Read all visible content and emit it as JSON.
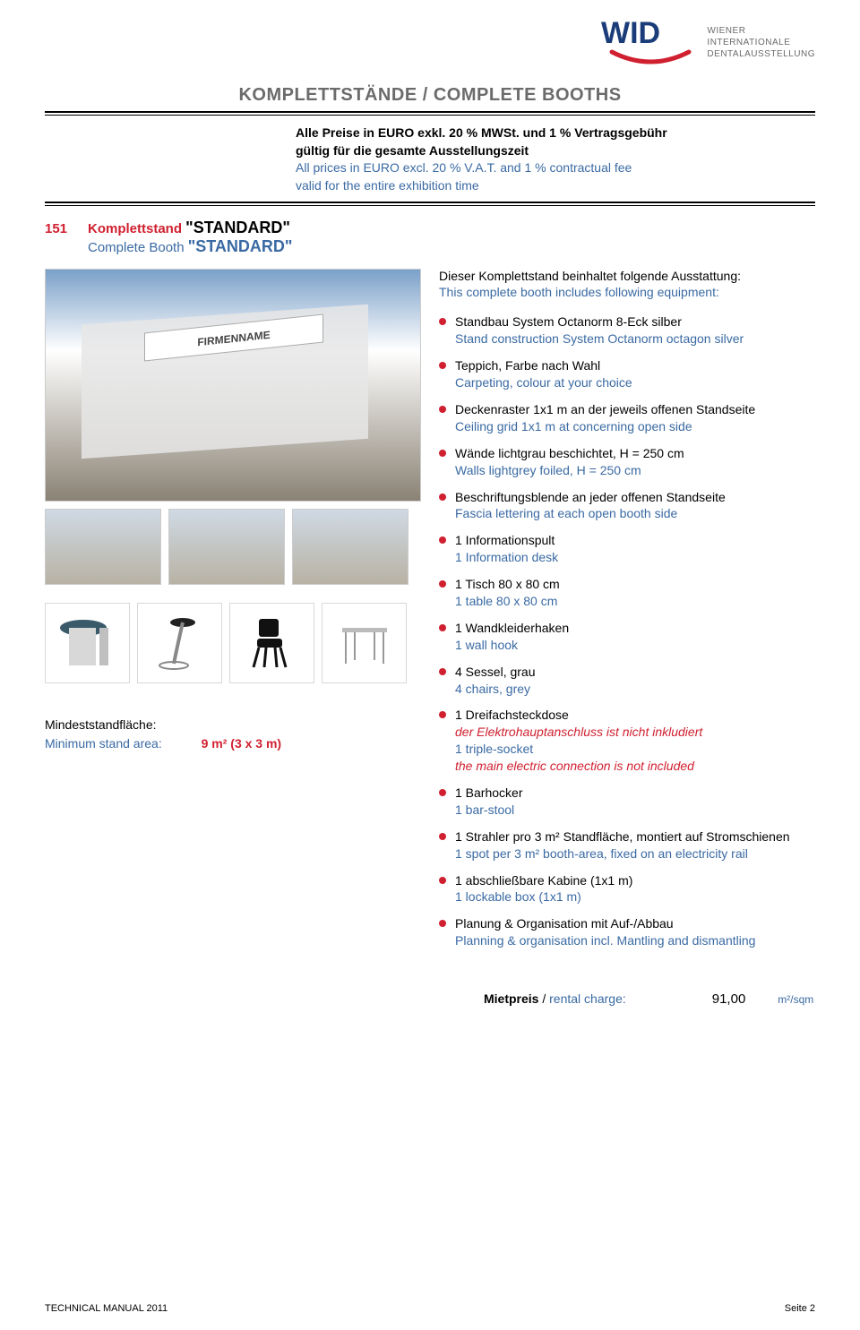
{
  "logo": {
    "text_lines": [
      "WIENER",
      "INTERNATIONALE",
      "DENTALAUSSTELLUNG"
    ],
    "colors": {
      "blue": "#1a3d7a",
      "red": "#d02030",
      "grey": "#6b6b6b"
    }
  },
  "main_title": "KOMPLETTSTÄNDE / COMPLETE BOOTHS",
  "price_note": {
    "de_line1": "Alle Preise in EURO exkl. 20 % MWSt. und 1 % Vertragsgebühr",
    "de_line2": "gültig für die gesamte Ausstellungszeit",
    "en_line1": "All prices in EURO excl. 20 % V.A.T. and 1 % contractual fee",
    "en_line2": "valid for the entire exhibition time"
  },
  "item": {
    "code": "151",
    "title_de_label": "Komplettstand ",
    "title_de_name": "\"STANDARD\"",
    "title_en_label": "Complete Booth ",
    "title_en_name": "\"STANDARD\""
  },
  "booth_sign": "FIRMENNAME",
  "min_area": {
    "de": "Mindeststandfläche:",
    "en": "Minimum stand area:",
    "val": "9 m² (3 x 3 m)"
  },
  "intro": {
    "de": "Dieser Komplettstand beinhaltet folgende Ausstattung:",
    "en": "This complete booth includes following equipment:"
  },
  "equipment": [
    {
      "de": "Standbau System Octanorm 8-Eck silber",
      "en": "Stand construction System Octanorm octagon silver"
    },
    {
      "de": "Teppich, Farbe nach Wahl",
      "en": "Carpeting, colour at your choice"
    },
    {
      "de": "Deckenraster 1x1 m an der jeweils offenen Standseite",
      "en": "Ceiling grid 1x1 m at concerning open side"
    },
    {
      "de": "Wände lichtgrau beschichtet, H = 250 cm",
      "en": "Walls lightgrey foiled, H = 250 cm"
    },
    {
      "de": "Beschriftungsblende an jeder offenen Standseite",
      "en": "Fascia lettering at each open booth side"
    },
    {
      "de": "1 Informationspult",
      "en": "1 Information desk"
    },
    {
      "de": "1 Tisch 80 x 80 cm",
      "en": "1 table 80 x 80 cm"
    },
    {
      "de": "1 Wandkleiderhaken",
      "en": "1 wall hook"
    },
    {
      "de": "4 Sessel, grau",
      "en": "4 chairs, grey"
    },
    {
      "de": "1 Dreifachsteckdose",
      "warn_de": "der Elektrohauptanschluss ist nicht inkludiert",
      "en": "1 triple-socket",
      "warn_en": "the main electric connection is not included"
    },
    {
      "de": "1 Barhocker",
      "en": "1 bar-stool"
    },
    {
      "de": "1 Strahler pro 3 m² Standfläche, montiert auf Stromschienen",
      "en": "1 spot per 3 m² booth-area, fixed on an electricity rail"
    },
    {
      "de": "1 abschließbare Kabine (1x1 m)",
      "en": "1 lockable box (1x1 m)"
    },
    {
      "de": "Planung & Organisation mit Auf-/Abbau",
      "en": "Planning & organisation incl. Mantling and dismantling"
    }
  ],
  "rental": {
    "label_de": "Mietpreis",
    "label_sep": " / ",
    "label_en": "rental charge:",
    "value": "91,00",
    "unit": "m²/sqm"
  },
  "footer": {
    "left": "TECHNICAL MANUAL 2011",
    "right": "Seite 2"
  }
}
